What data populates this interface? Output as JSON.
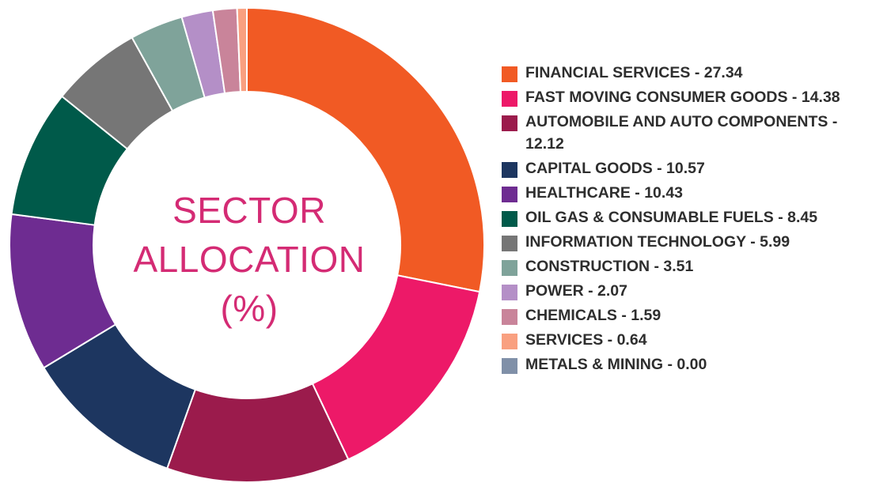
{
  "chart_data": {
    "type": "pie",
    "donut": true,
    "center_text": [
      "SECTOR",
      "ALLOCATION",
      "(%)"
    ],
    "categories": [
      "FINANCIAL SERVICES",
      "FAST MOVING CONSUMER GOODS",
      "AUTOMOBILE AND AUTO COMPONENTS",
      "CAPITAL GOODS",
      "HEALTHCARE",
      "OIL GAS & CONSUMABLE FUELS",
      "INFORMATION TECHNOLOGY",
      "CONSTRUCTION",
      "POWER",
      "CHEMICALS",
      "SERVICES",
      "METALS & MINING"
    ],
    "values": [
      27.34,
      14.38,
      12.12,
      10.57,
      10.43,
      8.45,
      5.99,
      3.51,
      2.07,
      1.59,
      0.64,
      0.0
    ],
    "value_labels": [
      "27.34",
      "14.38",
      "12.12",
      "10.57",
      "10.43",
      "8.45",
      "5.99",
      "3.51",
      "2.07",
      "1.59",
      "0.64",
      "0.00"
    ],
    "colors": [
      "#f15a24",
      "#ed1968",
      "#9b1b4c",
      "#1d3660",
      "#6e2c91",
      "#005a4a",
      "#767676",
      "#7fa39a",
      "#b48fc7",
      "#c9849a",
      "#f9a080",
      "#8090a8"
    ],
    "legend_placement": "right",
    "start_angle": "top, clockwise"
  }
}
